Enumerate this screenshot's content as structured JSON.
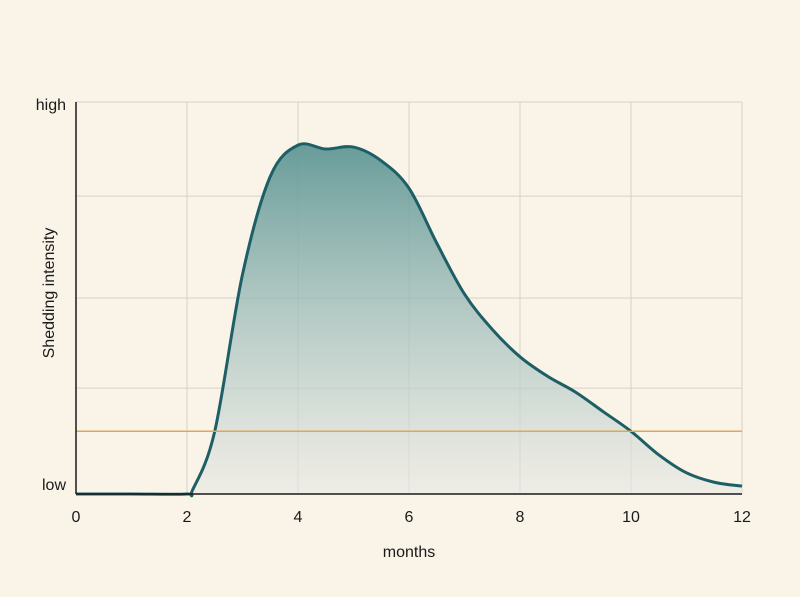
{
  "chart_data": {
    "type": "area",
    "x_label": "months",
    "y_label": "Shedding intensity",
    "x": [
      0,
      1,
      2,
      2.1,
      2.5,
      3,
      3.5,
      4,
      4.5,
      5,
      5.5,
      6,
      6.5,
      7,
      7.5,
      8,
      8.5,
      9,
      9.5,
      10,
      10.5,
      11,
      11.5,
      12
    ],
    "series": [
      {
        "color": "#1e5f66",
        "values": [
          0,
          0,
          0,
          0.01,
          0.16,
          0.56,
          0.81,
          0.89,
          0.88,
          0.885,
          0.85,
          0.78,
          0.64,
          0.51,
          0.42,
          0.35,
          0.3,
          0.26,
          0.21,
          0.16,
          0.1,
          0.054,
          0.03,
          0.02
        ]
      }
    ],
    "xlim": [
      0,
      12
    ],
    "xticks": [
      0,
      2,
      4,
      6,
      8,
      10,
      12
    ],
    "ylim": [
      0,
      1
    ],
    "yticks": [
      {
        "value": 0,
        "label": "low"
      },
      {
        "value": 0.27,
        "label": null
      },
      {
        "value": 0.5,
        "label": null
      },
      {
        "value": 0.76,
        "label": null
      },
      {
        "value": 1,
        "label": "high"
      }
    ],
    "reference_line": {
      "value": 0.16,
      "color": "#dcaa55"
    },
    "grid": true
  }
}
